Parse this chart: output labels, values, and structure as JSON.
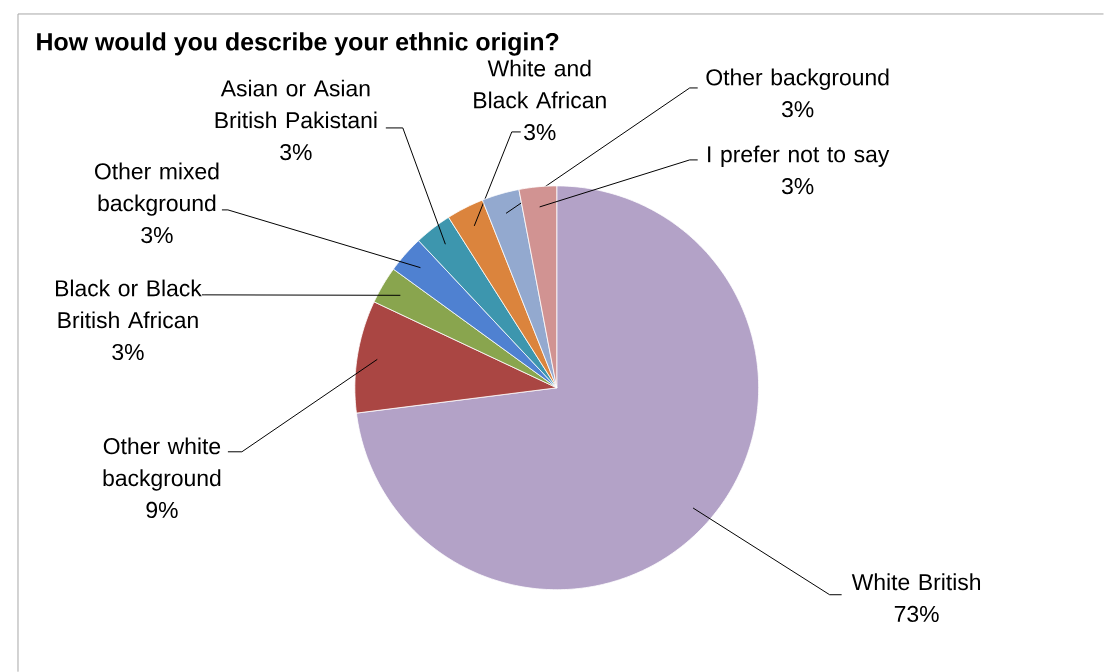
{
  "chart_data": {
    "type": "pie",
    "title": "How would you describe your ethnic origin?",
    "categories": [
      "White British",
      "Other white background",
      "Black or Black British African",
      "Other mixed background",
      "Asian or Asian British Pakistani",
      "White and Black African",
      "Other background",
      "I prefer not to say"
    ],
    "values": [
      73,
      9,
      3,
      3,
      3,
      3,
      3,
      3
    ],
    "value_labels": [
      "73%",
      "9%",
      "3%",
      "3%",
      "3%",
      "3%",
      "3%",
      "3%"
    ],
    "colors": [
      "#b3a2c7",
      "#aa4643",
      "#89a54e",
      "#4f81d1",
      "#3d96ae",
      "#db843d",
      "#93a9cf",
      "#d19392"
    ]
  }
}
